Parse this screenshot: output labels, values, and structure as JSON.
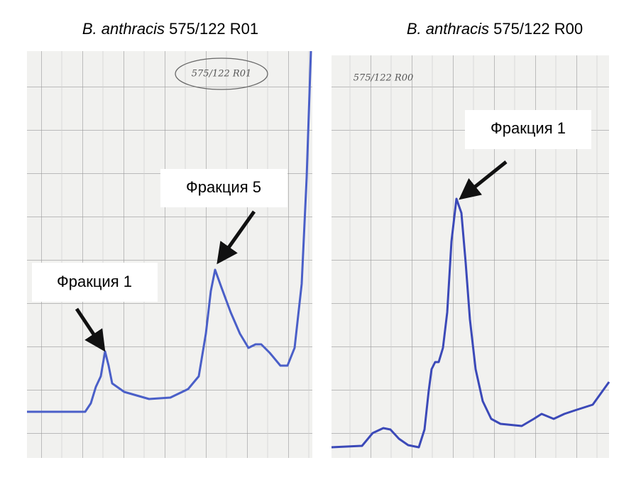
{
  "panels": [
    {
      "species": "B. anthracis",
      "strain": "575/122 R01",
      "handwritten_label": "575/122 R01",
      "annotations": [
        "Фракция 1",
        "Фракция 5"
      ]
    },
    {
      "species": "B. anthracis",
      "strain": "575/122 R00",
      "handwritten_label": "575/122 R00",
      "annotations": [
        "Фракция 1"
      ]
    }
  ]
}
